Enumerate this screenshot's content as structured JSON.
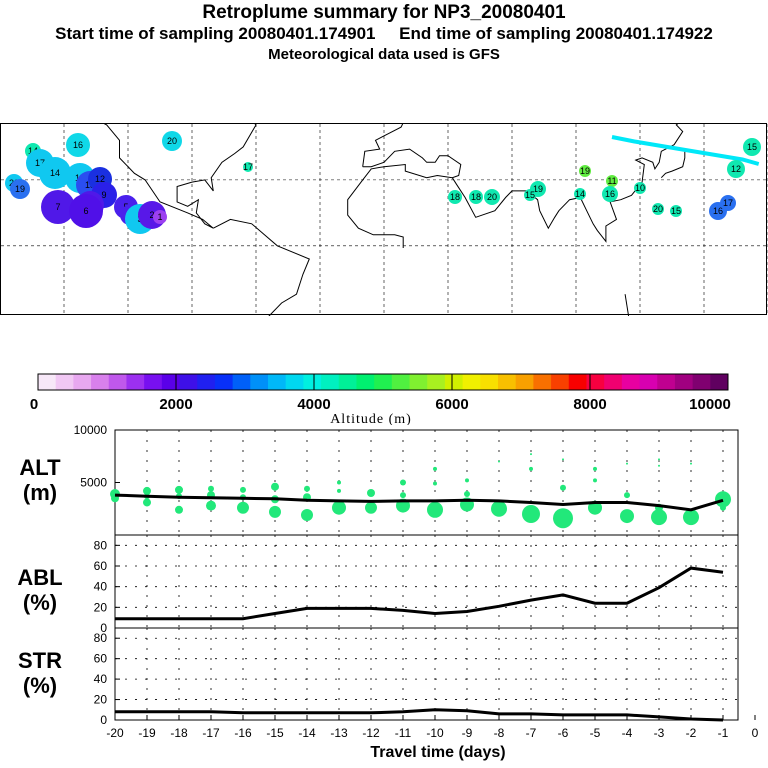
{
  "header": {
    "title": "Retroplume summary for NP3_20080401",
    "sampling": "Start time of sampling 20080401.174901     End time of sampling 20080401.174922",
    "met": "Meteorological data used is GFS"
  },
  "colors": {
    "scale": [
      "#f7e8f8",
      "#f1c8f4",
      "#e8a8f0",
      "#d880ec",
      "#c058ec",
      "#9c30f0",
      "#7810f0",
      "#5a00e8",
      "#3e10e8",
      "#2020f0",
      "#0830f8",
      "#0060f8",
      "#0090f8",
      "#00b8f8",
      "#00d8f0",
      "#00f0e0",
      "#00f0c0",
      "#00f098",
      "#00f070",
      "#20f050",
      "#50f040",
      "#80f030",
      "#a8f020",
      "#d0f000",
      "#f0f000",
      "#f8e000",
      "#f8c000",
      "#f8a000",
      "#f87000",
      "#f84000",
      "#f80000",
      "#f80040",
      "#f00070",
      "#e800a0",
      "#d800b0",
      "#c00090",
      "#a00080",
      "#800070",
      "#600060"
    ],
    "altitude_dot": "#22e87a",
    "trajectory": "#00e8f8"
  },
  "map": {
    "labels": [
      {
        "text": "16",
        "lon": -128,
        "lat": 72,
        "color": "#10d8e8",
        "r": 12
      },
      {
        "text": "20",
        "lon": -80,
        "lat": 73,
        "color": "#10d8e8",
        "r": 10
      },
      {
        "text": "14",
        "lon": -152,
        "lat": 70,
        "color": "#10e8b0",
        "r": 8
      },
      {
        "text": "17",
        "lon": -42,
        "lat": 57,
        "color": "#10e8b0",
        "r": 5
      },
      {
        "text": "19",
        "lon": 62,
        "lat": 40,
        "color": "#10e8b0",
        "r": 8
      },
      {
        "text": "20",
        "lon": 38,
        "lat": 33,
        "color": "#10e8b0",
        "r": 8
      },
      {
        "text": "18",
        "lon": 28,
        "lat": 33,
        "color": "#10e8b0",
        "r": 7
      },
      {
        "text": "18",
        "lon": 15,
        "lat": 33,
        "color": "#10e8b0",
        "r": 7
      },
      {
        "text": "15",
        "lon": 56,
        "lat": 35,
        "color": "#10e8b0",
        "r": 6
      },
      {
        "text": "14",
        "lon": 83,
        "lat": 37,
        "color": "#10e8b0",
        "r": 6
      },
      {
        "text": "19",
        "lon": 93,
        "lat": 55,
        "color": "#60ec40",
        "r": 6
      },
      {
        "text": "11",
        "lon": 110,
        "lat": 47,
        "color": "#60ec40",
        "r": 6
      },
      {
        "text": "16",
        "lon": 107,
        "lat": 35,
        "color": "#10e8b0",
        "r": 8
      },
      {
        "text": "10",
        "lon": 125,
        "lat": 37,
        "color": "#10e8b0",
        "r": 6
      },
      {
        "text": "20",
        "lon": 142,
        "lat": 24,
        "color": "#10e8b0",
        "r": 6
      },
      {
        "text": "15",
        "lon": 152,
        "lat": 20,
        "color": "#10e8b0",
        "r": 6
      },
      {
        "text": "15",
        "lon": 177,
        "lat": 78,
        "color": "#10e8b0",
        "r": 9
      },
      {
        "text": "12",
        "lon": 172,
        "lat": 57,
        "color": "#10e8b0",
        "r": 9
      },
      {
        "text": "16",
        "lon": 170,
        "lat": 22,
        "color": "#2a70f0",
        "r": 9
      },
      {
        "text": "17",
        "lon": 176,
        "lat": 30,
        "color": "#2a70f0",
        "r": 8
      },
      {
        "text": "20",
        "lon": -178,
        "lat": 44,
        "color": "#10c8f0",
        "r": 9
      },
      {
        "text": "19",
        "lon": -172,
        "lat": 40,
        "color": "#2a70f0",
        "r": 10
      },
      {
        "text": "17",
        "lon": -160,
        "lat": 52,
        "color": "#10c8f0",
        "r": 14
      },
      {
        "text": "14",
        "lon": -150,
        "lat": 47,
        "color": "#10c8f0",
        "r": 16
      },
      {
        "text": "15",
        "lon": -138,
        "lat": 48,
        "color": "#10c8f0",
        "r": 15
      },
      {
        "text": "13",
        "lon": -130,
        "lat": 42,
        "color": "#2a4ef0",
        "r": 14
      },
      {
        "text": "12",
        "lon": -124,
        "lat": 46,
        "color": "#1a30e0",
        "r": 12
      },
      {
        "text": "9",
        "lon": -122,
        "lat": 36,
        "color": "#2a20e8",
        "r": 13
      },
      {
        "text": "8",
        "lon": -140,
        "lat": 33,
        "color": "#5018e8",
        "r": 14
      },
      {
        "text": "7",
        "lon": -154,
        "lat": 32,
        "color": "#5018e8",
        "r": 17
      },
      {
        "text": "6",
        "lon": -133,
        "lat": 20,
        "color": "#5010e8",
        "r": 17
      },
      {
        "text": "5",
        "lon": -113,
        "lat": 28,
        "color": "#4a20ec",
        "r": 12
      },
      {
        "text": "4",
        "lon": -112,
        "lat": 21,
        "color": "#4a20ec",
        "r": 10
      },
      {
        "text": "3",
        "lon": -98,
        "lat": 13,
        "color": "#10c8f0",
        "r": 15
      },
      {
        "text": "2",
        "lon": -103,
        "lat": 15,
        "color": "#5818e8",
        "r": 14
      },
      {
        "text": "1",
        "lon": -90,
        "lat": 20,
        "color": "#9c40f0",
        "r": 7
      }
    ]
  },
  "colorbar": {
    "ticks": [
      "0",
      "2000",
      "4000",
      "6000",
      "8000",
      "10000"
    ],
    "label": "Altitude (m)"
  },
  "chart_data": [
    {
      "type": "scatter",
      "name": "ALT",
      "ylabel": "ALT (m)",
      "ylim": [
        0,
        10000
      ],
      "yticks": [
        "10000",
        "5000"
      ],
      "x": [
        -20,
        -19,
        -18,
        -17,
        -16,
        -15,
        -14,
        -13,
        -12,
        -11,
        -10,
        -9,
        -8,
        -7,
        -6,
        -5,
        -4,
        -3,
        -2,
        -1
      ],
      "mean_altitude": [
        3800,
        3700,
        3600,
        3550,
        3500,
        3450,
        3300,
        3250,
        3200,
        3250,
        3250,
        3300,
        3250,
        3100,
        2900,
        3100,
        3100,
        2800,
        2400,
        3300
      ],
      "points": [
        {
          "x": -20,
          "y": 3900,
          "r": 5
        },
        {
          "x": -20,
          "y": 3500,
          "r": 4
        },
        {
          "x": -19,
          "y": 4200,
          "r": 4
        },
        {
          "x": -19,
          "y": 3700,
          "r": 3
        },
        {
          "x": -19,
          "y": 3100,
          "r": 4
        },
        {
          "x": -18,
          "y": 4300,
          "r": 4
        },
        {
          "x": -18,
          "y": 3700,
          "r": 3
        },
        {
          "x": -18,
          "y": 2400,
          "r": 4
        },
        {
          "x": -17,
          "y": 4400,
          "r": 3
        },
        {
          "x": -17,
          "y": 3800,
          "r": 4
        },
        {
          "x": -17,
          "y": 2800,
          "r": 5
        },
        {
          "x": -16,
          "y": 4300,
          "r": 3
        },
        {
          "x": -16,
          "y": 3600,
          "r": 3
        },
        {
          "x": -16,
          "y": 2600,
          "r": 6
        },
        {
          "x": -15,
          "y": 4600,
          "r": 4
        },
        {
          "x": -15,
          "y": 3400,
          "r": 4
        },
        {
          "x": -15,
          "y": 2200,
          "r": 6
        },
        {
          "x": -14,
          "y": 4400,
          "r": 3
        },
        {
          "x": -14,
          "y": 3600,
          "r": 4
        },
        {
          "x": -14,
          "y": 1900,
          "r": 6
        },
        {
          "x": -13,
          "y": 5000,
          "r": 2
        },
        {
          "x": -13,
          "y": 4200,
          "r": 2
        },
        {
          "x": -13,
          "y": 2600,
          "r": 7
        },
        {
          "x": -12,
          "y": 4000,
          "r": 4
        },
        {
          "x": -12,
          "y": 2600,
          "r": 6
        },
        {
          "x": -11,
          "y": 5000,
          "r": 3
        },
        {
          "x": -11,
          "y": 3800,
          "r": 3
        },
        {
          "x": -11,
          "y": 2800,
          "r": 7
        },
        {
          "x": -10,
          "y": 6300,
          "r": 2
        },
        {
          "x": -10,
          "y": 4900,
          "r": 2
        },
        {
          "x": -10,
          "y": 2400,
          "r": 8
        },
        {
          "x": -9,
          "y": 5200,
          "r": 2
        },
        {
          "x": -9,
          "y": 3900,
          "r": 3
        },
        {
          "x": -9,
          "y": 2900,
          "r": 7
        },
        {
          "x": -8,
          "y": 7000,
          "r": 1
        },
        {
          "x": -8,
          "y": 2500,
          "r": 8
        },
        {
          "x": -7,
          "y": 7700,
          "r": 1
        },
        {
          "x": -7,
          "y": 6300,
          "r": 2
        },
        {
          "x": -7,
          "y": 2000,
          "r": 9
        },
        {
          "x": -6,
          "y": 7200,
          "r": 1
        },
        {
          "x": -6,
          "y": 4500,
          "r": 3
        },
        {
          "x": -6,
          "y": 1600,
          "r": 10
        },
        {
          "x": -5,
          "y": 6300,
          "r": 2
        },
        {
          "x": -5,
          "y": 5200,
          "r": 2
        },
        {
          "x": -5,
          "y": 2600,
          "r": 7
        },
        {
          "x": -4,
          "y": 6800,
          "r": 1
        },
        {
          "x": -4,
          "y": 3800,
          "r": 3
        },
        {
          "x": -4,
          "y": 1800,
          "r": 7
        },
        {
          "x": -3,
          "y": 7200,
          "r": 1
        },
        {
          "x": -3,
          "y": 6600,
          "r": 1
        },
        {
          "x": -3,
          "y": 2600,
          "r": 4
        },
        {
          "x": -3,
          "y": 1700,
          "r": 8
        },
        {
          "x": -2,
          "y": 6800,
          "r": 1
        },
        {
          "x": -2,
          "y": 1700,
          "r": 8
        },
        {
          "x": -1,
          "y": 3400,
          "r": 8
        },
        {
          "x": -1,
          "y": 2600,
          "r": 3
        }
      ]
    },
    {
      "type": "line",
      "name": "ABL",
      "ylabel": "ABL (%)",
      "ylim": [
        0,
        90
      ],
      "yticks": [
        "0",
        "20",
        "40",
        "60",
        "80"
      ],
      "x": [
        -20,
        -19,
        -18,
        -17,
        -16,
        -15,
        -14,
        -13,
        -12,
        -11,
        -10,
        -9,
        -8,
        -7,
        -6,
        -5,
        -4,
        -3,
        -2,
        -1
      ],
      "values": [
        9,
        9,
        9,
        9,
        9,
        14,
        19,
        19,
        19,
        17,
        14,
        16,
        21,
        27,
        32,
        24,
        24,
        39,
        58,
        54
      ]
    },
    {
      "type": "line",
      "name": "STR",
      "ylabel": "STR (%)",
      "ylim": [
        0,
        90
      ],
      "yticks": [
        "0",
        "20",
        "40",
        "60",
        "80"
      ],
      "xlabel": "Travel time (days)",
      "xticks": [
        "-20",
        "-19",
        "-18",
        "-17",
        "-16",
        "-15",
        "-14",
        "-13",
        "-12",
        "-11",
        "-10",
        "-9",
        "-8",
        "-7",
        "-6",
        "-5",
        "-4",
        "-3",
        "-2",
        "-1",
        "0"
      ],
      "x": [
        -20,
        -19,
        -18,
        -17,
        -16,
        -15,
        -14,
        -13,
        -12,
        -11,
        -10,
        -9,
        -8,
        -7,
        -6,
        -5,
        -4,
        -3,
        -2,
        -1
      ],
      "values": [
        8,
        8,
        8,
        8,
        7,
        7,
        7,
        7,
        7,
        8,
        10,
        9,
        6,
        6,
        5,
        5,
        5,
        3,
        1,
        0
      ]
    }
  ],
  "panels": {
    "alt": "ALT\n(m)",
    "abl": "ABL\n(%)",
    "str": "STR\n(%)"
  }
}
